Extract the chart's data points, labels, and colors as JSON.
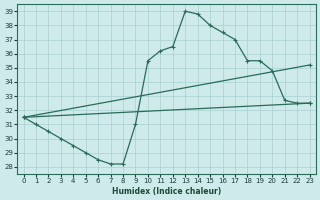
{
  "xlabel": "Humidex (Indice chaleur)",
  "bg_color": "#ceeaea",
  "line_color": "#2a6b5a",
  "grid_color": "#aacfcf",
  "xlim": [
    -0.5,
    23.5
  ],
  "ylim": [
    27.5,
    39.5
  ],
  "xticks": [
    0,
    1,
    2,
    3,
    4,
    5,
    6,
    7,
    8,
    9,
    10,
    11,
    12,
    13,
    14,
    15,
    16,
    17,
    18,
    19,
    20,
    21,
    22,
    23
  ],
  "yticks": [
    28,
    29,
    30,
    31,
    32,
    33,
    34,
    35,
    36,
    37,
    38,
    39
  ],
  "line1_x": [
    0,
    1,
    2,
    3,
    4,
    5,
    6,
    7,
    8,
    9,
    10,
    11,
    12,
    13,
    14,
    15,
    16,
    17,
    18,
    19,
    20,
    21,
    22,
    23
  ],
  "line1_y": [
    31.5,
    31.0,
    30.5,
    30.0,
    29.5,
    29.0,
    28.5,
    28.2,
    28.2,
    31.0,
    35.5,
    36.2,
    36.5,
    39.0,
    38.8,
    38.0,
    37.5,
    37.0,
    35.5,
    35.5,
    34.8,
    32.7,
    32.5,
    32.5
  ],
  "line2_x": [
    0,
    23
  ],
  "line2_y": [
    31.5,
    35.2
  ],
  "line3_x": [
    0,
    23
  ],
  "line3_y": [
    31.5,
    32.5
  ]
}
